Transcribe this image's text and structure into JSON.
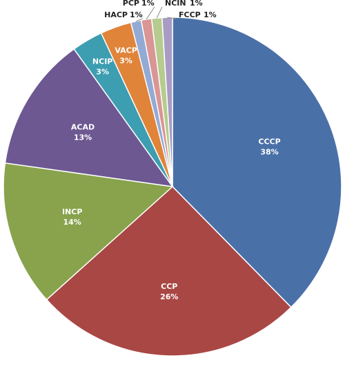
{
  "chart_data": {
    "type": "pie",
    "categories": [
      "CCCP",
      "CCP",
      "INCP",
      "ACAD",
      "NCIP",
      "VACP",
      "HACP",
      "PCP",
      "NCIN",
      "FCCP"
    ],
    "values": [
      38,
      26,
      14,
      13,
      3,
      3,
      1,
      1,
      1,
      1
    ],
    "value_labels": [
      "38%",
      "26%",
      "14%",
      "13%",
      "3%",
      "3%",
      "1%",
      "1%",
      "1%",
      "1%"
    ],
    "colors": [
      "#4a70a8",
      "#a94744",
      "#88a34c",
      "#6d5892",
      "#3d9db1",
      "#e0843a",
      "#93aad4",
      "#d99694",
      "#b5cc8e",
      "#a99cc4"
    ]
  }
}
